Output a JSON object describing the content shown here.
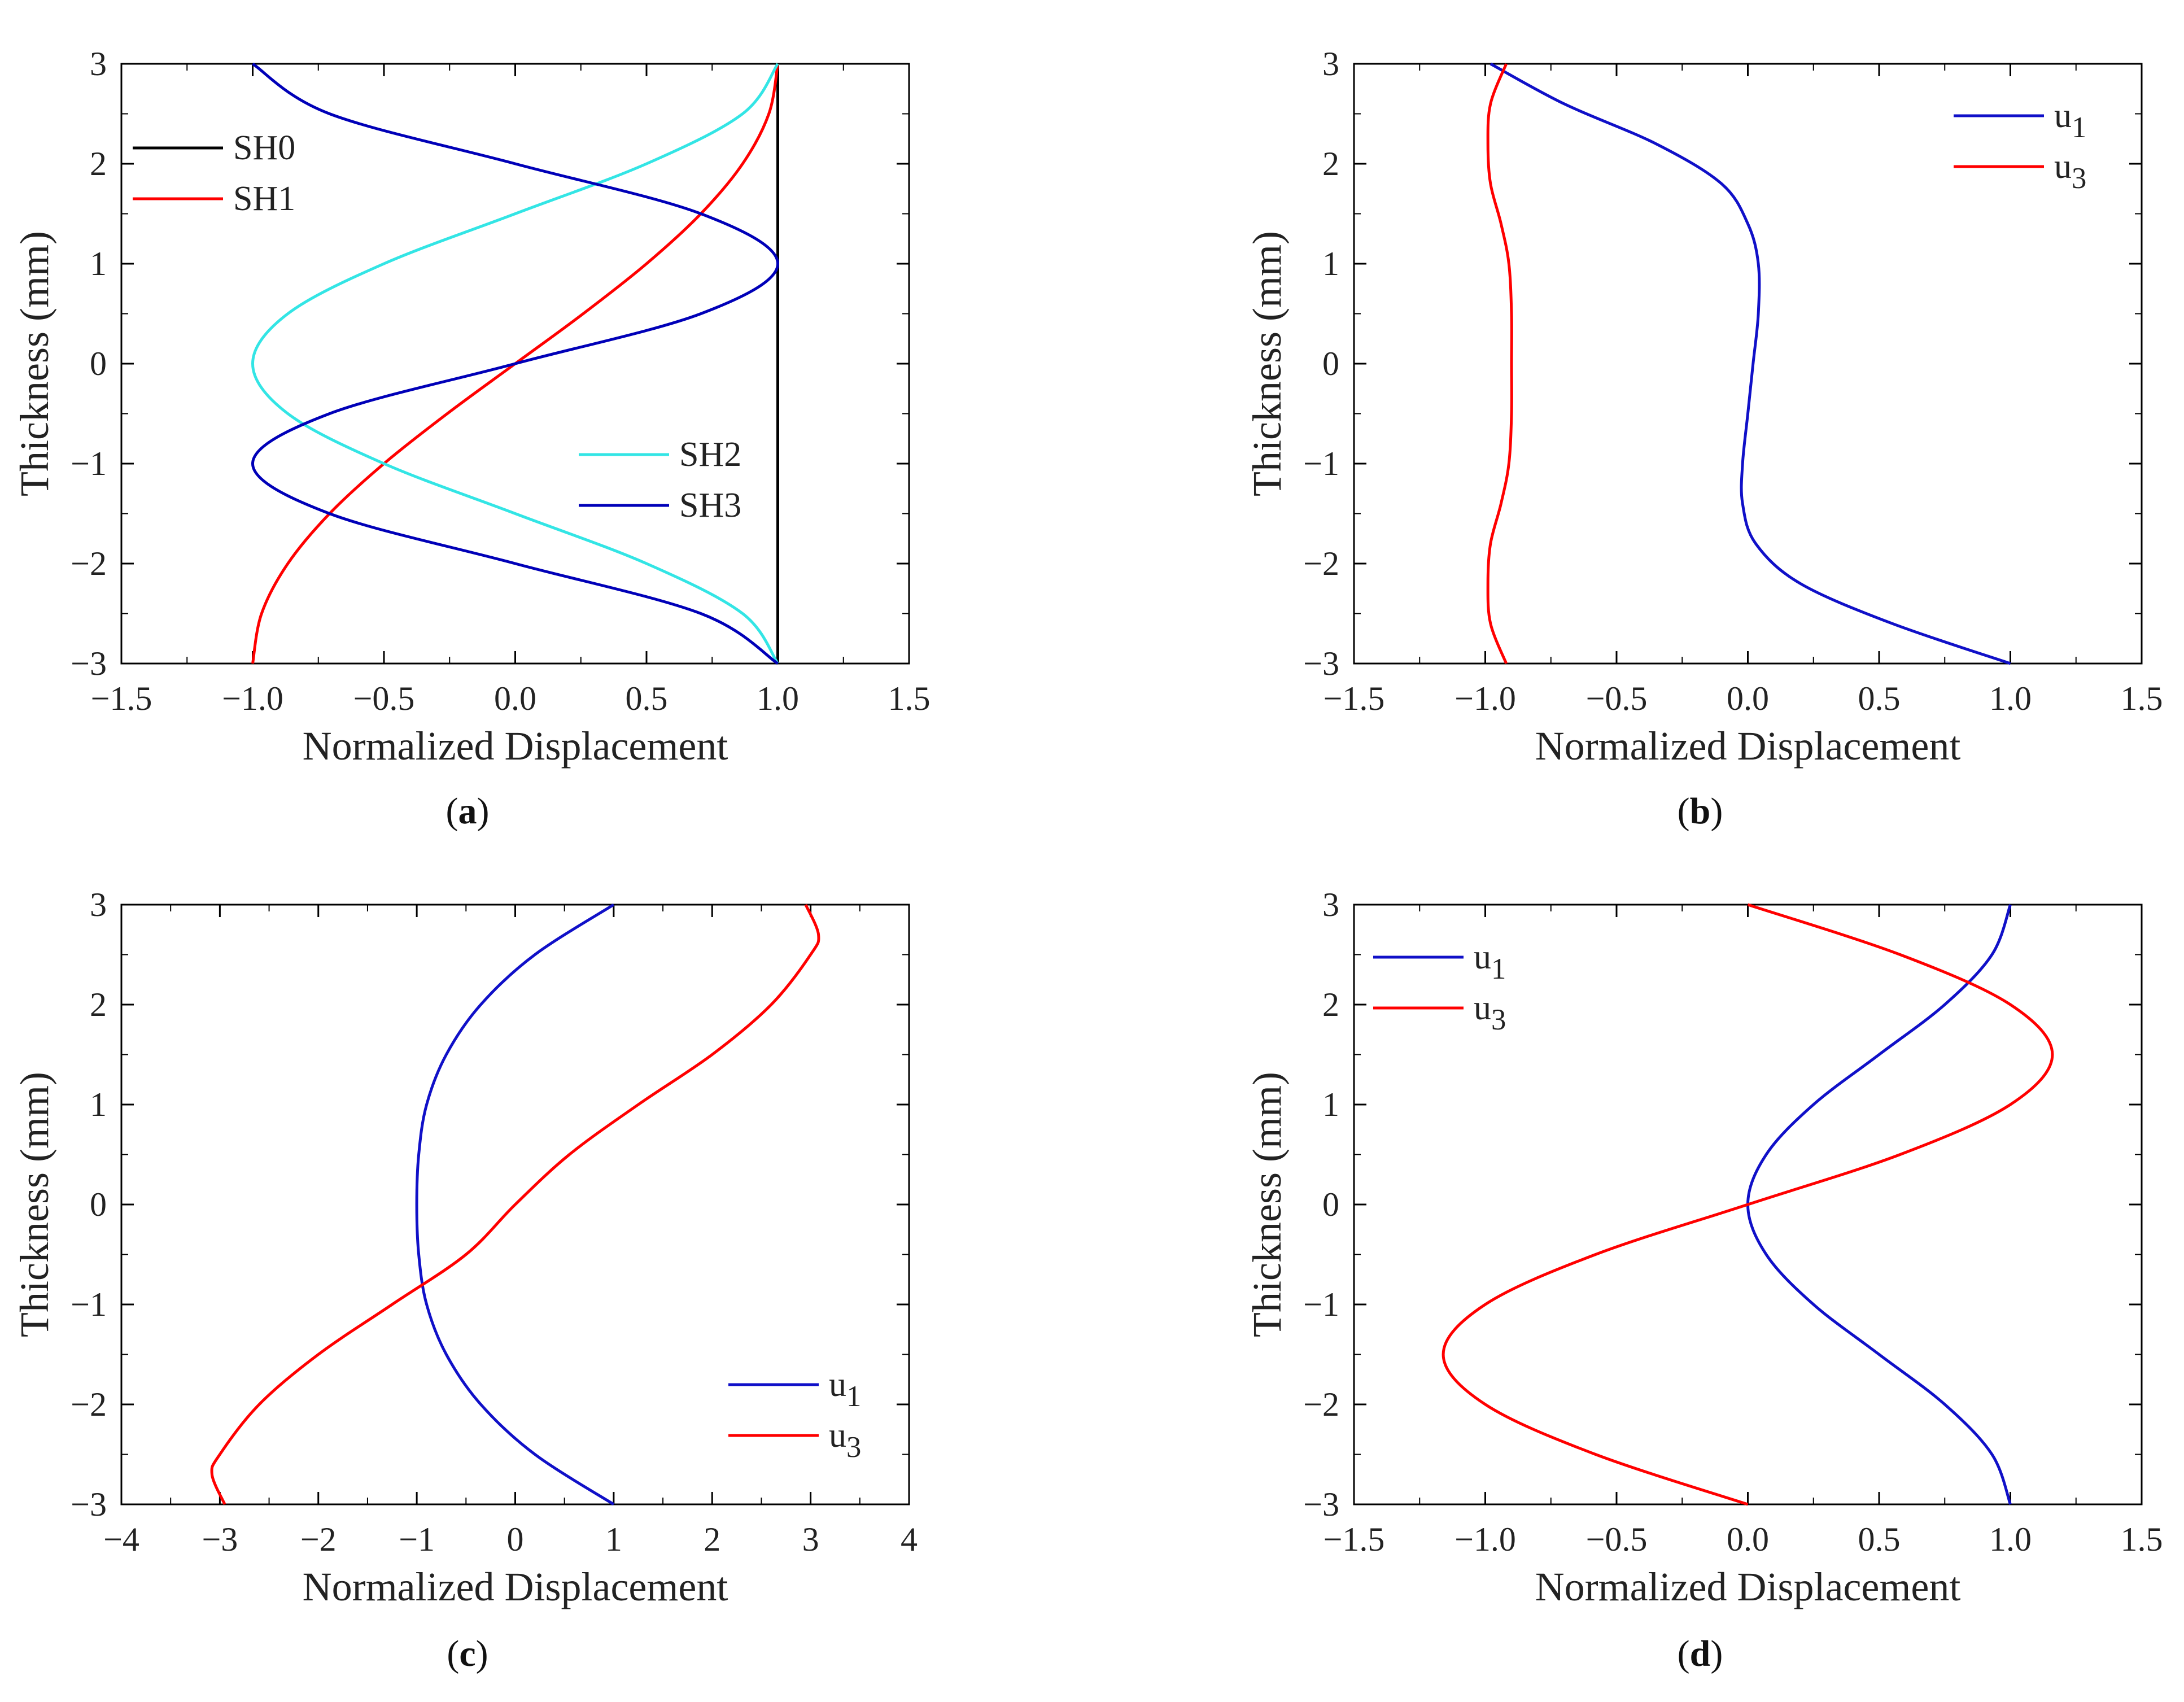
{
  "chart_data": [
    {
      "type": "line",
      "panel_label": "a",
      "xlabel": "Normalized Displacement",
      "ylabel": "Thickness (mm)",
      "xlim": [
        -1.5,
        1.5
      ],
      "ylim": [
        -3,
        3
      ],
      "xticks": [
        -1.5,
        -1.0,
        -0.5,
        0.0,
        0.5,
        1.0,
        1.5
      ],
      "xtick_labels": [
        "−1.5",
        "−1.0",
        "−0.5",
        "0.0",
        "0.5",
        "1.0",
        "1.5"
      ],
      "yticks": [
        -3,
        -2,
        -1,
        0,
        1,
        2,
        3
      ],
      "ytick_labels": [
        "−3",
        "−2",
        "−1",
        "0",
        "1",
        "2",
        "3"
      ],
      "series": [
        {
          "name": "SH0",
          "color": "#000000",
          "y": [
            -3,
            -2,
            -1,
            0,
            1,
            2,
            3
          ],
          "x": [
            1.0,
            1.0,
            1.0,
            1.0,
            1.0,
            1.0,
            1.0
          ]
        },
        {
          "name": "SH1",
          "color": "#ff0000",
          "y": [
            -3,
            -2.5,
            -2,
            -1.5,
            -1,
            -0.5,
            0,
            0.5,
            1,
            1.5,
            2,
            2.5,
            3
          ],
          "x": [
            -1.0,
            -0.966,
            -0.866,
            -0.707,
            -0.5,
            -0.259,
            0.0,
            0.259,
            0.5,
            0.707,
            0.866,
            0.966,
            1.0
          ]
        },
        {
          "name": "SH2",
          "color": "#33e5e5",
          "y": [
            -3,
            -2.5,
            -2,
            -1.5,
            -1,
            -0.5,
            0,
            0.5,
            1,
            1.5,
            2,
            2.5,
            3
          ],
          "x": [
            1.0,
            0.866,
            0.5,
            0.0,
            -0.5,
            -0.866,
            -1.0,
            -0.866,
            -0.5,
            0.0,
            0.5,
            0.866,
            1.0
          ]
        },
        {
          "name": "SH3",
          "color": "#0000b8",
          "y": [
            -3,
            -2.5,
            -2,
            -1.5,
            -1,
            -0.5,
            0,
            0.5,
            1,
            1.5,
            2,
            2.5,
            3
          ],
          "x": [
            1.0,
            0.707,
            0.0,
            -0.707,
            -1.0,
            -0.707,
            0.0,
            0.707,
            1.0,
            0.707,
            0.0,
            -0.707,
            -1.0
          ]
        }
      ],
      "legend": [
        {
          "position": "top-left",
          "entries": [
            "SH0",
            "SH1"
          ]
        },
        {
          "position": "lower-right",
          "entries": [
            "SH2",
            "SH3"
          ]
        }
      ]
    },
    {
      "type": "line",
      "panel_label": "b",
      "xlabel": "Normalized Displacement",
      "ylabel": "Thickness (mm)",
      "xlim": [
        -1.5,
        1.5
      ],
      "ylim": [
        -3,
        3
      ],
      "xticks": [
        -1.5,
        -1.0,
        -0.5,
        0.0,
        0.5,
        1.0,
        1.5
      ],
      "xtick_labels": [
        "−1.5",
        "−1.0",
        "−0.5",
        "0.0",
        "0.5",
        "1.0",
        "1.5"
      ],
      "yticks": [
        -3,
        -2,
        -1,
        0,
        1,
        2,
        3
      ],
      "ytick_labels": [
        "−3",
        "−2",
        "−1",
        "0",
        "1",
        "2",
        "3"
      ],
      "series": [
        {
          "name": "u",
          "subscript": "1",
          "color": "#1010c8",
          "y": [
            -3,
            -2.6,
            -2.2,
            -1.8,
            -1.4,
            -1.0,
            -0.5,
            0,
            0.5,
            1.0,
            1.4,
            1.8,
            2.2,
            2.6,
            3
          ],
          "x": [
            1.0,
            0.55,
            0.2,
            0.03,
            -0.02,
            -0.02,
            0.0,
            0.02,
            0.04,
            0.04,
            0.0,
            -0.1,
            -0.35,
            -0.7,
            -0.98
          ]
        },
        {
          "name": "u",
          "subscript": "3",
          "color": "#ff0000",
          "y": [
            -3,
            -2.6,
            -2.2,
            -1.8,
            -1.4,
            -1.0,
            -0.5,
            0,
            0.5,
            1.0,
            1.4,
            1.8,
            2.2,
            2.6,
            3
          ],
          "x": [
            -0.92,
            -0.98,
            -0.99,
            -0.98,
            -0.94,
            -0.91,
            -0.9,
            -0.9,
            -0.9,
            -0.91,
            -0.94,
            -0.98,
            -0.99,
            -0.98,
            -0.92
          ]
        }
      ],
      "legend": [
        {
          "position": "top-right",
          "entries": [
            "u1",
            "u3"
          ]
        }
      ]
    },
    {
      "type": "line",
      "panel_label": "c",
      "xlabel": "Normalized Displacement",
      "ylabel": "Thickness (mm)",
      "xlim": [
        -4,
        4
      ],
      "ylim": [
        -3,
        3
      ],
      "xticks": [
        -4,
        -3,
        -2,
        -1,
        0,
        1,
        2,
        3,
        4
      ],
      "xtick_labels": [
        "−4",
        "−3",
        "−2",
        "−1",
        "0",
        "1",
        "2",
        "3",
        "4"
      ],
      "yticks": [
        -3,
        -2,
        -1,
        0,
        1,
        2,
        3
      ],
      "ytick_labels": [
        "−3",
        "−2",
        "−1",
        "0",
        "1",
        "2",
        "3"
      ],
      "series": [
        {
          "name": "u",
          "subscript": "1",
          "color": "#1010c8",
          "y": [
            -3,
            -2.5,
            -2,
            -1.5,
            -1,
            -0.5,
            0,
            0.5,
            1,
            1.5,
            2,
            2.5,
            3
          ],
          "x": [
            1.0,
            0.2,
            -0.35,
            -0.7,
            -0.9,
            -0.98,
            -1.0,
            -0.98,
            -0.9,
            -0.7,
            -0.35,
            0.2,
            1.0
          ]
        },
        {
          "name": "u",
          "subscript": "3",
          "color": "#ff0000",
          "y": [
            -3,
            -2.7,
            -2.5,
            -2,
            -1.5,
            -1,
            -0.5,
            0,
            0.5,
            1,
            1.5,
            2,
            2.5,
            2.7,
            3
          ],
          "x": [
            -2.95,
            -3.08,
            -3.0,
            -2.6,
            -2.0,
            -1.25,
            -0.5,
            0.0,
            0.55,
            1.25,
            2.0,
            2.6,
            3.0,
            3.08,
            2.95
          ]
        }
      ],
      "legend": [
        {
          "position": "lower-right",
          "entries": [
            "u1",
            "u3"
          ]
        }
      ]
    },
    {
      "type": "line",
      "panel_label": "d",
      "xlabel": "Normalized Displacement",
      "ylabel": "Thickness (mm)",
      "xlim": [
        -1.5,
        1.5
      ],
      "ylim": [
        -3,
        3
      ],
      "xticks": [
        -1.5,
        -1.0,
        -0.5,
        0.0,
        0.5,
        1.0,
        1.5
      ],
      "xtick_labels": [
        "−1.5",
        "−1.0",
        "−0.5",
        "0.0",
        "0.5",
        "1.0",
        "1.5"
      ],
      "yticks": [
        -3,
        -2,
        -1,
        0,
        1,
        2,
        3
      ],
      "ytick_labels": [
        "−3",
        "−2",
        "−1",
        "0",
        "1",
        "2",
        "3"
      ],
      "series": [
        {
          "name": "u",
          "subscript": "1",
          "color": "#1010c8",
          "y": [
            -3,
            -2.5,
            -2,
            -1.5,
            -1,
            -0.5,
            0,
            0.5,
            1,
            1.5,
            2,
            2.5,
            3
          ],
          "x": [
            1.0,
            0.93,
            0.75,
            0.5,
            0.25,
            0.07,
            0.0,
            0.07,
            0.25,
            0.5,
            0.75,
            0.93,
            1.0
          ]
        },
        {
          "name": "u",
          "subscript": "3",
          "color": "#ff0000",
          "y": [
            -3,
            -2.5,
            -2,
            -1.5,
            -1,
            -0.5,
            0,
            0.5,
            1,
            1.5,
            2,
            2.5,
            3
          ],
          "x": [
            0.0,
            -0.58,
            -1.0,
            -1.16,
            -1.0,
            -0.58,
            0.0,
            0.58,
            1.0,
            1.16,
            1.0,
            0.58,
            0.0
          ]
        }
      ],
      "legend": [
        {
          "position": "top-left",
          "entries": [
            "u1",
            "u3"
          ]
        }
      ]
    }
  ]
}
